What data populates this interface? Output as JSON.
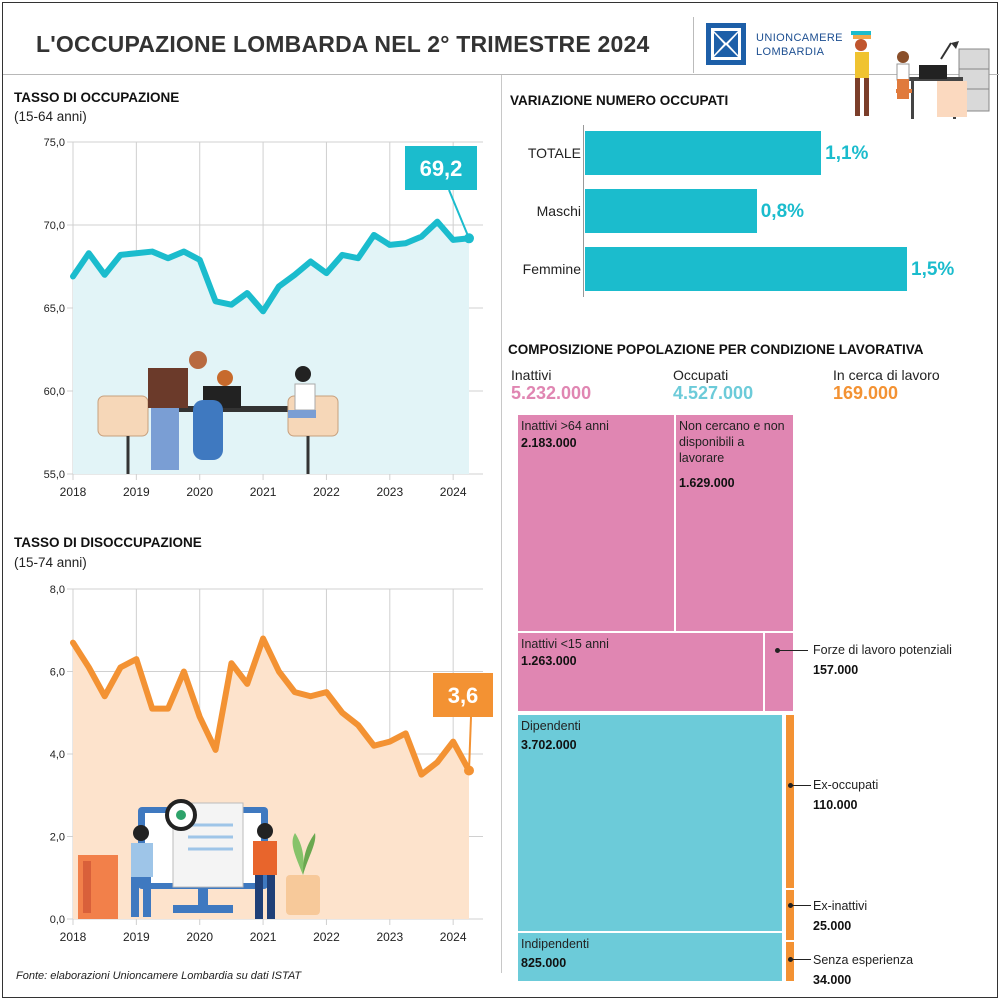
{
  "header": {
    "title": "L'OCCUPAZIONE LOMBARDA NEL 2° TRIMESTRE 2024",
    "logo_line1": "UNIONCAMERE",
    "logo_line2": "LOMBARDIA"
  },
  "colors": {
    "teal": "#1bbccd",
    "light_teal": "#6ccbd9",
    "pink": "#e086b2",
    "orange": "#f39233",
    "area_teal": "#e2f4f7",
    "area_orange": "#fde3cc"
  },
  "chart_data": [
    {
      "type": "line",
      "title": "TASSO DI OCCUPAZIONE",
      "subtitle": "(15-64 anni)",
      "xlabel": "",
      "ylabel": "",
      "ylim": [
        55,
        75
      ],
      "y_ticks": [
        "75,0",
        "70,0",
        "65,0",
        "60,0",
        "55,0"
      ],
      "x_ticks": [
        "2018",
        "2019",
        "2020",
        "2021",
        "2022",
        "2023",
        "2024"
      ],
      "x": [
        "2018-T1",
        "2018-T2",
        "2018-T3",
        "2018-T4",
        "2019-T1",
        "2019-T2",
        "2019-T3",
        "2019-T4",
        "2020-T1",
        "2020-T2",
        "2020-T3",
        "2020-T4",
        "2021-T1",
        "2021-T2",
        "2021-T3",
        "2021-T4",
        "2022-T1",
        "2022-T2",
        "2022-T3",
        "2022-T4",
        "2023-T1",
        "2023-T2",
        "2023-T3",
        "2023-T4",
        "2024-T1",
        "2024-T2"
      ],
      "values": [
        66.9,
        68.3,
        67.0,
        68.2,
        68.3,
        68.4,
        68.0,
        68.4,
        67.9,
        65.4,
        65.2,
        65.9,
        64.8,
        66.3,
        67.0,
        67.8,
        67.1,
        68.2,
        68.0,
        69.4,
        68.8,
        68.9,
        69.3,
        70.2,
        69.1,
        69.2
      ],
      "callout": "69,2",
      "grid": true
    },
    {
      "type": "line",
      "title": "TASSO DI DISOCCUPAZIONE",
      "subtitle": "(15-74 anni)",
      "xlabel": "",
      "ylabel": "",
      "ylim": [
        0,
        8
      ],
      "y_ticks": [
        "8,0",
        "6,0",
        "4,0",
        "2,0",
        "0,0"
      ],
      "x_ticks": [
        "2018",
        "2019",
        "2020",
        "2021",
        "2022",
        "2023",
        "2024"
      ],
      "x": [
        "2018-T1",
        "2018-T2",
        "2018-T3",
        "2018-T4",
        "2019-T1",
        "2019-T2",
        "2019-T3",
        "2019-T4",
        "2020-T1",
        "2020-T2",
        "2020-T3",
        "2020-T4",
        "2021-T1",
        "2021-T2",
        "2021-T3",
        "2021-T4",
        "2022-T1",
        "2022-T2",
        "2022-T3",
        "2022-T4",
        "2023-T1",
        "2023-T2",
        "2023-T3",
        "2023-T4",
        "2024-T1",
        "2024-T2"
      ],
      "values": [
        6.7,
        6.1,
        5.4,
        6.1,
        6.3,
        5.1,
        5.1,
        6.0,
        4.9,
        4.1,
        6.2,
        5.7,
        6.8,
        6.0,
        5.5,
        5.4,
        5.5,
        5.0,
        4.7,
        4.2,
        4.3,
        4.5,
        3.5,
        3.8,
        4.3,
        3.6
      ],
      "callout": "3,6",
      "grid": true
    },
    {
      "type": "bar",
      "orientation": "horizontal",
      "title": "VARIAZIONE NUMERO OCCUPATI",
      "categories": [
        "TOTALE",
        "Maschi",
        "Femmine"
      ],
      "values": [
        1.1,
        0.8,
        1.5
      ],
      "labels": [
        "1,1%",
        "0,8%",
        "1,5%"
      ],
      "unit": "%"
    },
    {
      "type": "treemap",
      "title": "COMPOSIZIONE POPOLAZIONE PER CONDIZIONE LAVORATIVA",
      "groups": [
        {
          "name": "Inattivi",
          "total": 5232000,
          "total_label": "5.232.000",
          "color": "#e086b2"
        },
        {
          "name": "Occupati",
          "total": 4527000,
          "total_label": "4.527.000",
          "color": "#6ccbd9"
        },
        {
          "name": "In cerca di lavoro",
          "total": 169000,
          "total_label": "169.000",
          "color": "#f39233"
        }
      ],
      "cells": [
        {
          "group": "Inattivi",
          "label": "Inattivi >64 anni",
          "value": 2183000,
          "value_label": "2.183.000"
        },
        {
          "group": "Inattivi",
          "label": "Non cercano e non disponibili a lavorare",
          "value": 1629000,
          "value_label": "1.629.000"
        },
        {
          "group": "Inattivi",
          "label": "Inattivi <15 anni",
          "value": 1263000,
          "value_label": "1.263.000"
        },
        {
          "group": "Inattivi",
          "label": "Forze di lavoro potenziali",
          "value": 157000,
          "value_label": "157.000"
        },
        {
          "group": "Occupati",
          "label": "Dipendenti",
          "value": 3702000,
          "value_label": "3.702.000"
        },
        {
          "group": "Occupati",
          "label": "Indipendenti",
          "value": 825000,
          "value_label": "825.000"
        },
        {
          "group": "In cerca di lavoro",
          "label": "Ex-occupati",
          "value": 110000,
          "value_label": "110.000"
        },
        {
          "group": "In cerca di lavoro",
          "label": "Ex-inattivi",
          "value": 25000,
          "value_label": "25.000"
        },
        {
          "group": "In cerca di lavoro",
          "label": "Senza esperienza",
          "value": 34000,
          "value_label": "34.000"
        }
      ]
    }
  ],
  "source": "Fonte: elaborazioni Unioncamere Lombardia su dati ISTAT"
}
